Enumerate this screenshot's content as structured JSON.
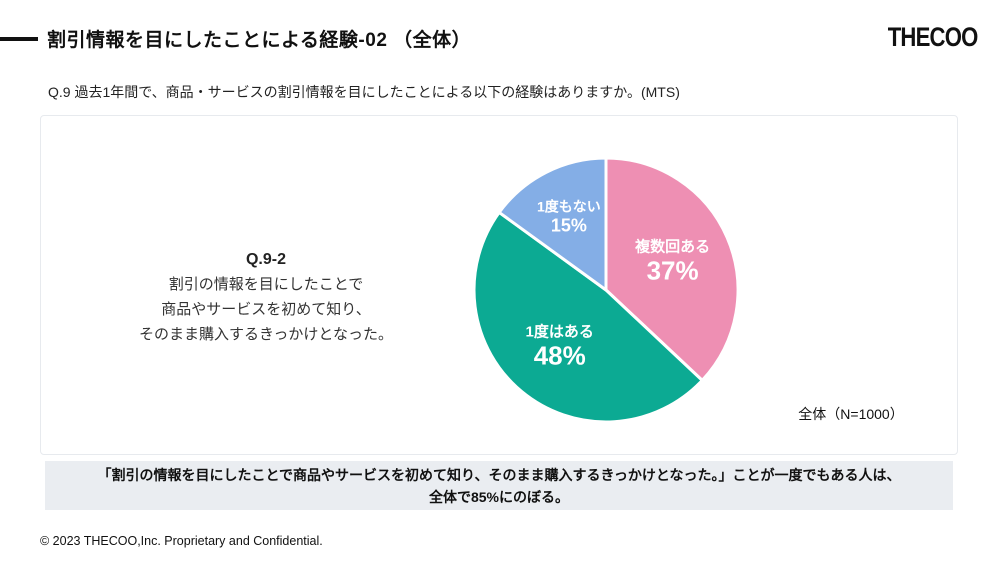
{
  "header": {
    "title": "割引情報を目にしたことによる経験-02 （全体）",
    "logo": "THECOO"
  },
  "question": "Q.9 過去1年間で、商品・サービスの割引情報を目にしたことによる以下の経験はありますか。(MTS)",
  "card": {
    "prompt": {
      "heading": "Q.9-2",
      "lines": [
        "割引の情報を目にしたことで",
        "商品やサービスを初めて知り、",
        "そのまま購入するきっかけとなった。"
      ]
    },
    "sample_label": "全体（N=1000）"
  },
  "chart_data": {
    "type": "pie",
    "categories": [
      "複数回ある",
      "1度はある",
      "1度もない"
    ],
    "values": [
      37,
      48,
      15
    ],
    "unit": "%",
    "colors": [
      "#ee8fb3",
      "#0caa93",
      "#84aee6"
    ],
    "start_angle_deg": -90,
    "direction": "clockwise",
    "label_position": "inside",
    "label_color": "#ffffff",
    "slice_gap_color": "#ffffff",
    "sample": "全体（N=1000）"
  },
  "summary": {
    "lines": [
      "「割引の情報を目にしたことで商品やサービスを初めて知り、そのまま購入するきっかけとなった。」ことが一度でもある人は、",
      "全体で85%にのぼる。"
    ]
  },
  "footer": {
    "copyright": "© 2023 THECOO,Inc. Proprietary and Confidential."
  }
}
